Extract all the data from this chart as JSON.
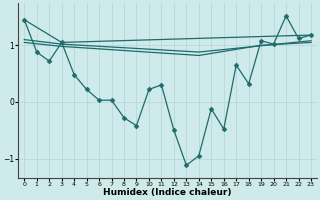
{
  "xlabel": "Humidex (Indice chaleur)",
  "bg_color": "#ceeaea",
  "line_color": "#1e6b6b",
  "grid_color": "#b8d8d8",
  "xlim": [
    -0.5,
    23.5
  ],
  "ylim": [
    -1.35,
    1.75
  ],
  "yticks": [
    -1,
    0,
    1
  ],
  "xticks": [
    0,
    1,
    2,
    3,
    4,
    5,
    6,
    7,
    8,
    9,
    10,
    11,
    12,
    13,
    14,
    15,
    16,
    17,
    18,
    19,
    20,
    21,
    22,
    23
  ],
  "zigzag_x": [
    0,
    1,
    2,
    3,
    4,
    5,
    6,
    7,
    8,
    9,
    10,
    11,
    12,
    13,
    14,
    15,
    16,
    17,
    18,
    19,
    20,
    21,
    22,
    23
  ],
  "zigzag_y": [
    1.45,
    0.88,
    0.72,
    1.05,
    0.48,
    0.22,
    0.03,
    0.03,
    -0.28,
    -0.42,
    0.22,
    0.3,
    -0.5,
    -1.12,
    -0.95,
    -0.12,
    -0.48,
    0.65,
    0.32,
    1.08,
    1.02,
    1.52,
    1.12,
    1.18
  ],
  "line1_x": [
    0,
    3,
    23
  ],
  "line1_y": [
    1.45,
    1.05,
    1.18
  ],
  "line2_x": [
    0,
    3,
    14,
    23
  ],
  "line2_y": [
    1.1,
    1.02,
    0.88,
    1.08
  ],
  "line3_x": [
    0,
    3,
    14,
    19,
    23
  ],
  "line3_y": [
    1.05,
    0.98,
    0.82,
    1.0,
    1.05
  ]
}
